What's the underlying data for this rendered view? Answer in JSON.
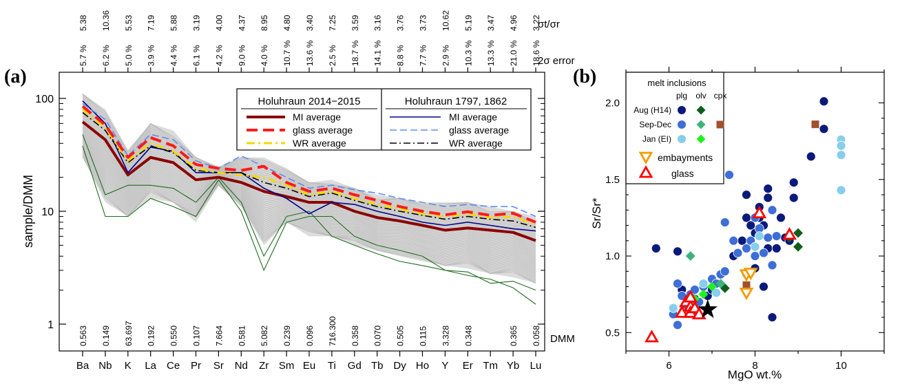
{
  "panels": {
    "a_label": "(a)",
    "b_label": "(b)"
  },
  "colors": {
    "mi_2014": "#8b0000",
    "glass_2014": "#ff1a1a",
    "wr_2014": "#f5d800",
    "mi_hist": "#00008b",
    "glass_hist": "#5b8def",
    "wr_hist": "#000000",
    "samples": "#bdbdbd",
    "envelope": "#dcdcdc",
    "green": "#1e6b1e",
    "aug_h14": "#0b1a7a",
    "sep_dec": "#3e6ed6",
    "jan_ei": "#87ceeb",
    "olv_aug": "#0f5d1c",
    "olv_sep": "#3db37a",
    "olv_jan": "#22f022",
    "cpx_sep": "#a0522d",
    "embayment": "#f59b00",
    "glass_tri": "#ff0000"
  },
  "chart_data": [
    {
      "type": "line",
      "panel": "a",
      "ylabel": "sample/DMM",
      "yscale": "log",
      "ylim": [
        0.9,
        200
      ],
      "yticks": [
        "1",
        "10",
        "100"
      ],
      "categories": [
        "Ba",
        "Nb",
        "K",
        "La",
        "Ce",
        "Pr",
        "Sr",
        "Nd",
        "Zr",
        "Sm",
        "Eu",
        "Ti",
        "Gd",
        "Tb",
        "Dy",
        "Ho",
        "Y",
        "Er",
        "Tm",
        "Yb",
        "Lu"
      ],
      "sigma_ratio_label": "σt/σr",
      "sigma_ratio": [
        "5.38",
        "10.36",
        "5.53",
        "7.19",
        "5.88",
        "3.19",
        "4.00",
        "4.37",
        "8.95",
        "4.80",
        "3.40",
        "7.25",
        "3.59",
        "3.16",
        "3.76",
        "3.73",
        "10.62",
        "5.19",
        "3.47",
        "4.96",
        "3.22"
      ],
      "error_label": "2σ error",
      "error_2sigma": [
        "5.7 %",
        "6.2 %",
        "5.0 %",
        "3.9 %",
        "4.4 %",
        "6.1 %",
        "4.2 %",
        "9.0 %",
        "4.0 %",
        "10.7 %",
        "13.6 %",
        "2.5 %",
        "18.7 %",
        "14.1 %",
        "8.8 %",
        "7.7 %",
        "2.9 %",
        "10.3 %",
        "13.3 %",
        "21.0 %",
        "18.6 %"
      ],
      "dmm_label": "DMM",
      "dmm_values": [
        "0.563",
        "0.149",
        "63.697",
        "0.192",
        "0.550",
        "0.107",
        "7.664",
        "0.581",
        "5.082",
        "0.239",
        "0.096",
        "716.300",
        "0.358",
        "0.070",
        "0.505",
        "0.115",
        "3.328",
        "0.348",
        "",
        "0.365",
        "0.058"
      ],
      "legend_2014": {
        "title": "Holuhraun 2014−2015",
        "items": [
          "MI average",
          "glass average",
          "WR average"
        ]
      },
      "legend_hist": {
        "title": "Holuhraun 1797, 1862",
        "items": [
          "MI average",
          "glass average",
          "WR average"
        ]
      },
      "envelope": {
        "upper": [
          110,
          80,
          35,
          60,
          52,
          30,
          25,
          30,
          30,
          24,
          18,
          19,
          16,
          14,
          13,
          12,
          12,
          12,
          11,
          10,
          9
        ],
        "lower": [
          30,
          12,
          9,
          13,
          12,
          8,
          17,
          11,
          5,
          8,
          6,
          6,
          5,
          4.5,
          4,
          3.6,
          3.3,
          3.1,
          2.8,
          2.6,
          2.3
        ]
      },
      "series": [
        {
          "name": "MI average",
          "group": "2014",
          "values": [
            62,
            43,
            21,
            30,
            27,
            19,
            20,
            18,
            15,
            13.5,
            12,
            12,
            10,
            8.8,
            8.2,
            7.5,
            6.8,
            7.1,
            6.8,
            6.5,
            5.5
          ]
        },
        {
          "name": "glass average",
          "group": "2014",
          "values": [
            85,
            58,
            30,
            45,
            38,
            26,
            24,
            23,
            25,
            18,
            15,
            16,
            14,
            12.5,
            11,
            10,
            9.3,
            9.9,
            9.2,
            9.6,
            8
          ]
        },
        {
          "name": "WR average",
          "group": "2014",
          "values": [
            80,
            55,
            28,
            40,
            34,
            24,
            22,
            21,
            20,
            17,
            14,
            15,
            13,
            11.5,
            10.5,
            9.5,
            9,
            9.5,
            8.8,
            9,
            7.5
          ]
        },
        {
          "name": "MI average",
          "group": "hist",
          "values": [
            95,
            60,
            22,
            37,
            34,
            22,
            22,
            22,
            16,
            13,
            9.5,
            12,
            11.5,
            10,
            9,
            8,
            7.5,
            8,
            7.5,
            7,
            6.7
          ]
        },
        {
          "name": "glass average",
          "group": "hist",
          "values": [
            90,
            65,
            31,
            48,
            43,
            28,
            24,
            31,
            25,
            20,
            16,
            17,
            15.5,
            14.5,
            13,
            12,
            11,
            11.5,
            11,
            11,
            9
          ]
        },
        {
          "name": "WR average",
          "group": "hist",
          "values": [
            75,
            52,
            27,
            38,
            33,
            23,
            22,
            22,
            18,
            16,
            13.5,
            14.5,
            12.5,
            11,
            10,
            9.2,
            8.5,
            9,
            8.5,
            8.2,
            7.2
          ]
        },
        {
          "name": "",
          "group": "thin-green",
          "values": [
            48,
            14,
            17,
            17,
            16,
            12,
            20,
            12,
            4,
            9,
            10,
            6,
            5,
            4.2,
            3.6,
            3.3,
            3,
            2.7,
            2.5,
            2.1,
            1.5
          ]
        },
        {
          "name": "",
          "group": "thin-green",
          "values": [
            38,
            9,
            9,
            13,
            11,
            9,
            19,
            10,
            3,
            8,
            9,
            9,
            6,
            5,
            4.5,
            4,
            3,
            2.9,
            2.3,
            2.4,
            2
          ]
        }
      ]
    },
    {
      "type": "scatter",
      "panel": "b",
      "xlabel": "MgO wt.%",
      "ylabel": "Sr/Sr*",
      "xlim": [
        5,
        11
      ],
      "ylim": [
        0.38,
        2.2
      ],
      "xticks": [
        "6",
        "8",
        "10"
      ],
      "yticks": [
        "0.5",
        "1.0",
        "1.5",
        "2.0"
      ],
      "legend": {
        "title": "melt inclusions",
        "columns": [
          "plg",
          "olv",
          "cpx"
        ],
        "rows": [
          "Aug (H14)",
          "Sep-Dec",
          "Jan (EI)"
        ],
        "embayments": "embayments",
        "glass": "glass"
      },
      "plg_aug": [
        [
          5.7,
          1.05
        ],
        [
          6.2,
          1.03
        ],
        [
          6.3,
          0.78
        ],
        [
          6.5,
          0.72
        ],
        [
          6.6,
          0.72
        ],
        [
          7.3,
          0.9
        ],
        [
          7.5,
          1.0
        ],
        [
          7.7,
          1.1
        ],
        [
          7.8,
          1.4
        ],
        [
          7.8,
          1.25
        ],
        [
          7.9,
          1.2
        ],
        [
          8,
          1.15
        ],
        [
          8.1,
          1.32
        ],
        [
          8.1,
          1.25
        ],
        [
          8.2,
          1.2
        ],
        [
          8.3,
          1.44
        ],
        [
          8.3,
          1.38
        ],
        [
          8.3,
          1.05
        ],
        [
          8.4,
          0.6
        ],
        [
          8.5,
          1.05
        ],
        [
          8.6,
          1.25
        ],
        [
          8.7,
          1.12
        ],
        [
          8.8,
          1.1
        ],
        [
          8.9,
          1.38
        ],
        [
          8.9,
          1.48
        ],
        [
          9.3,
          1.65
        ],
        [
          9.6,
          1.83
        ],
        [
          9.6,
          2.01
        ],
        [
          8.2,
          0.8
        ],
        [
          8.0,
          0.92
        ],
        [
          6.9,
          0.74
        ],
        [
          7.0,
          0.78
        ]
      ],
      "plg_sep": [
        [
          6.2,
          0.82
        ],
        [
          6.2,
          0.55
        ],
        [
          6.3,
          0.74
        ],
        [
          6.5,
          0.75
        ],
        [
          6.6,
          0.78
        ],
        [
          6.7,
          0.7
        ],
        [
          6.8,
          0.8
        ],
        [
          7.0,
          0.85
        ],
        [
          7.1,
          0.82
        ],
        [
          7.2,
          0.88
        ],
        [
          7.3,
          0.9
        ],
        [
          7.3,
          1.22
        ],
        [
          7.4,
          1.53
        ],
        [
          7.5,
          1.1
        ],
        [
          7.6,
          1.02
        ],
        [
          7.8,
          1.05
        ],
        [
          7.9,
          1.1
        ],
        [
          8.0,
          1.25
        ],
        [
          8.0,
          1.0
        ],
        [
          8.1,
          1.18
        ],
        [
          8.2,
          1.02
        ],
        [
          8.3,
          1.12
        ],
        [
          8.4,
          0.94
        ],
        [
          8.4,
          1.3
        ],
        [
          8.5,
          1.13
        ],
        [
          6.1,
          0.62
        ],
        [
          6.4,
          0.68
        ]
      ],
      "plg_jan": [
        [
          6.1,
          0.66
        ],
        [
          6.5,
          0.62
        ],
        [
          6.8,
          0.82
        ],
        [
          7.1,
          0.76
        ],
        [
          7.8,
          0.88
        ],
        [
          8.0,
          1.06
        ],
        [
          8.1,
          1.13
        ],
        [
          10,
          1.76
        ],
        [
          10,
          1.72
        ],
        [
          10,
          1.66
        ],
        [
          10,
          1.43
        ]
      ],
      "olv_aug": [
        [
          9.0,
          1.15
        ],
        [
          9.0,
          1.06
        ],
        [
          8.8,
          1.12
        ],
        [
          7.3,
          0.79
        ]
      ],
      "olv_sep": [
        [
          6.5,
          1.0
        ],
        [
          7.2,
          0.82
        ]
      ],
      "olv_jan": [
        [
          7.0,
          0.8
        ],
        [
          6.8,
          0.75
        ],
        [
          6.6,
          0.72
        ]
      ],
      "cpx_sep": [
        [
          9.4,
          1.86
        ],
        [
          7.8,
          0.81
        ]
      ],
      "embayments": [
        [
          7.8,
          0.88
        ],
        [
          7.8,
          0.76
        ],
        [
          7.9,
          0.89
        ]
      ],
      "glass": [
        [
          5.6,
          0.47
        ],
        [
          6.3,
          0.63
        ],
        [
          6.4,
          0.7
        ],
        [
          6.5,
          0.67
        ],
        [
          6.5,
          0.63
        ],
        [
          6.6,
          0.66
        ],
        [
          6.7,
          0.62
        ],
        [
          6.5,
          0.73
        ],
        [
          8.1,
          1.28
        ],
        [
          8.8,
          1.14
        ]
      ],
      "star": [
        [
          6.9,
          0.65
        ]
      ]
    }
  ]
}
